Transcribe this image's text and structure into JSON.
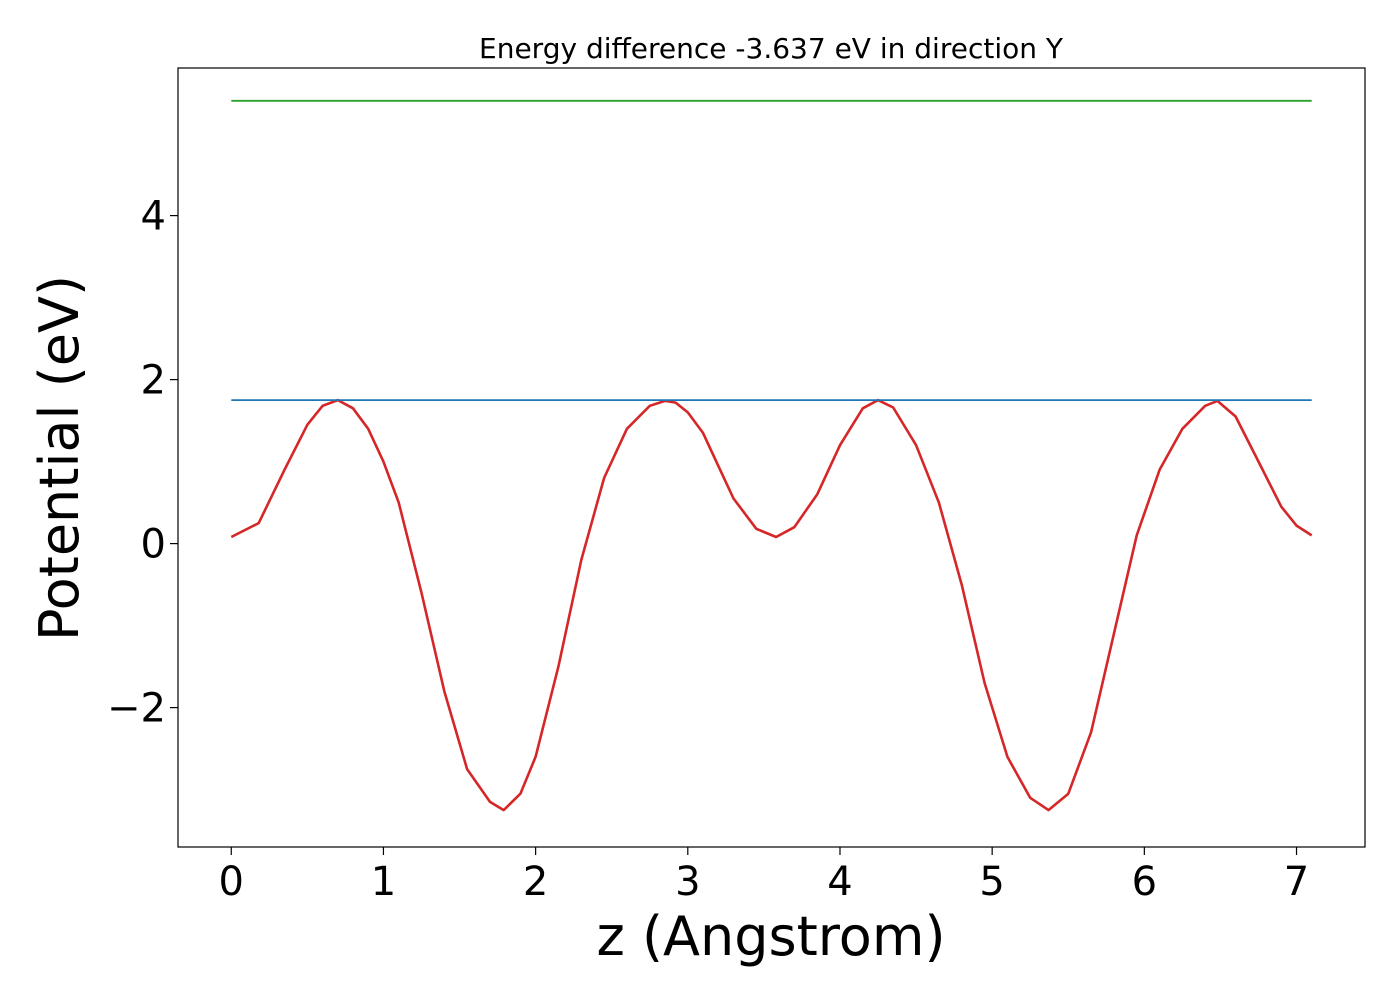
{
  "chart_data": {
    "type": "line",
    "title": "Energy difference -3.637 eV in direction Y",
    "xlabel": "z (Angstrom)",
    "ylabel": "Potential (eV)",
    "xlim": [
      -0.35,
      7.45
    ],
    "ylim": [
      -3.7,
      5.8
    ],
    "xticks": [
      0,
      1,
      2,
      3,
      4,
      5,
      6,
      7
    ],
    "xtick_labels": [
      "0",
      "1",
      "2",
      "3",
      "4",
      "5",
      "6",
      "7"
    ],
    "yticks": [
      -2,
      0,
      2,
      4
    ],
    "ytick_labels": [
      "−2",
      "0",
      "2",
      "4"
    ],
    "grid": false,
    "legend": "none",
    "series": [
      {
        "color": "#d62728",
        "x": [
          0.0,
          0.18,
          0.35,
          0.5,
          0.6,
          0.7,
          0.8,
          0.9,
          1.0,
          1.1,
          1.25,
          1.4,
          1.55,
          1.7,
          1.79,
          1.9,
          2.0,
          2.15,
          2.3,
          2.45,
          2.6,
          2.75,
          2.85,
          2.92,
          3.0,
          3.1,
          3.2,
          3.3,
          3.45,
          3.58,
          3.7,
          3.85,
          4.0,
          4.15,
          4.25,
          4.35,
          4.5,
          4.65,
          4.8,
          4.95,
          5.1,
          5.25,
          5.37,
          5.5,
          5.65,
          5.8,
          5.95,
          6.1,
          6.25,
          6.4,
          6.48,
          6.6,
          6.75,
          6.9,
          7.0,
          7.1
        ],
        "y": [
          0.08,
          0.25,
          0.9,
          1.45,
          1.68,
          1.75,
          1.65,
          1.4,
          1.0,
          0.5,
          -0.6,
          -1.8,
          -2.75,
          -3.15,
          -3.25,
          -3.05,
          -2.6,
          -1.5,
          -0.2,
          0.8,
          1.4,
          1.68,
          1.74,
          1.72,
          1.6,
          1.35,
          0.95,
          0.55,
          0.18,
          0.08,
          0.2,
          0.6,
          1.2,
          1.65,
          1.75,
          1.66,
          1.2,
          0.5,
          -0.5,
          -1.7,
          -2.6,
          -3.1,
          -3.25,
          -3.05,
          -2.3,
          -1.1,
          0.1,
          0.9,
          1.4,
          1.68,
          1.74,
          1.55,
          1.0,
          0.45,
          0.22,
          0.1
        ]
      },
      {
        "color": "#1f77b4",
        "x": [
          0.0,
          7.1
        ],
        "y": [
          1.75,
          1.75
        ]
      },
      {
        "color": "#2ca02c",
        "x": [
          0.0,
          7.1
        ],
        "y": [
          5.4,
          5.4
        ]
      }
    ]
  }
}
